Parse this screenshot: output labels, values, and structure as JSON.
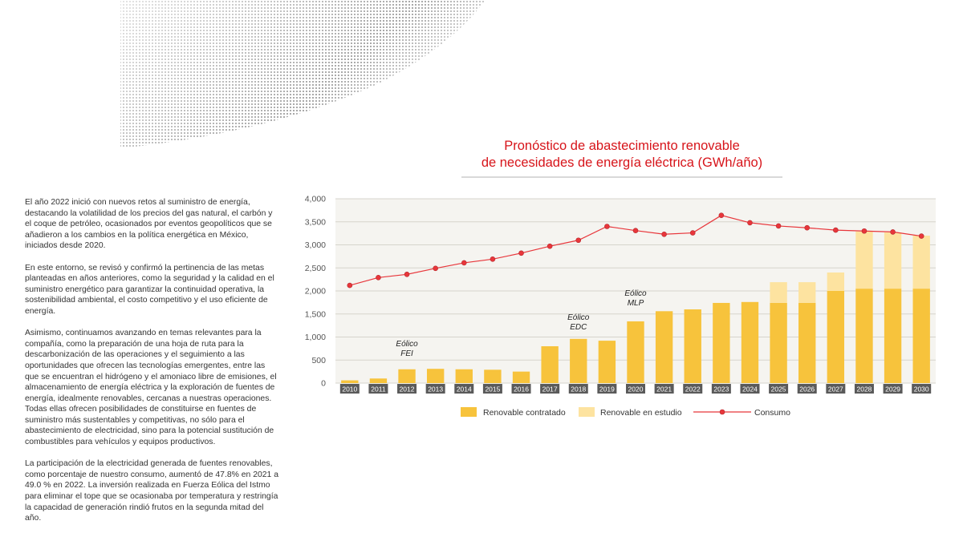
{
  "paragraphs": [
    "El año 2022 inició con nuevos retos al suministro de energía, destacando la volatilidad de los precios del gas natural, el carbón y el coque de petróleo, ocasionados por eventos geopolíticos que se añadieron a los cambios en la política energética en México, iniciados desde 2020.",
    "En este entorno, se revisó y confirmó la pertinencia de las metas planteadas en años anteriores, como la seguridad y la calidad en el suministro energético para garantizar la continuidad operativa, la sostenibilidad ambiental, el costo competitivo y el uso eficiente de energía.",
    "Asimismo, continuamos avanzando en temas relevantes para la compañía, como la preparación de una hoja de ruta para la descarbonización de las operaciones y el seguimiento a las oportunidades que ofrecen las tecnologías emergentes, entre las que se encuentran el hidrógeno y el amoniaco libre de emisiones, el almacenamiento de energía eléctrica y la exploración de fuentes de energía, idealmente renovables, cercanas a nuestras operaciones. Todas ellas ofrecen posibilidades de constituirse en fuentes de suministro más sustentables y competitivas, no sólo para el abastecimiento de electricidad, sino para la potencial sustitución de combustibles para vehículos y equipos productivos.",
    "La participación de la electricidad generada de fuentes renovables, como porcentaje de nuestro consumo, aumentó de 47.8% en 2021 a 49.0 % en 2022. La inversión realizada en Fuerza Eólica del Istmo para eliminar el tope que se ocasionaba por temperatura y restringía la capacidad de generación rindió frutos en la segunda mitad del año."
  ],
  "chart_data": {
    "type": "bar",
    "title_line1": "Pronóstico de abastecimiento renovable",
    "title_line2": "de necesidades de energía eléctrica (GWh/año)",
    "categories": [
      "2010",
      "2011",
      "2012",
      "2013",
      "2014",
      "2015",
      "2016",
      "2017",
      "2018",
      "2019",
      "2020",
      "2021",
      "2022",
      "2023",
      "2024",
      "2025",
      "2026",
      "2027",
      "2028",
      "2029",
      "2030"
    ],
    "ylim": [
      0,
      4000
    ],
    "yticks": [
      0,
      500,
      1000,
      1500,
      2000,
      2500,
      3000,
      3500,
      4000
    ],
    "ytick_labels": [
      "0",
      "500",
      "1,000",
      "1,500",
      "2,000",
      "2,500",
      "3,000",
      "3,500",
      "4,000"
    ],
    "grid": true,
    "legend_position": "bottom",
    "series": [
      {
        "name": "Renovable contratado",
        "type": "bar",
        "color": "#f7c33c",
        "values": [
          60,
          100,
          300,
          310,
          300,
          290,
          250,
          800,
          960,
          920,
          1340,
          1560,
          1600,
          1740,
          1760,
          1740,
          1740,
          2000,
          2050,
          2050,
          2050
        ]
      },
      {
        "name": "Renovable en estudio",
        "type": "bar",
        "color": "#fde3a0",
        "values": [
          0,
          0,
          0,
          0,
          0,
          0,
          0,
          0,
          0,
          0,
          0,
          0,
          0,
          0,
          0,
          450,
          450,
          400,
          1240,
          1220,
          1150
        ]
      },
      {
        "name": "Consumo",
        "type": "line",
        "color": "#e8363b",
        "values": [
          2120,
          2290,
          2360,
          2490,
          2610,
          2690,
          2820,
          2970,
          3100,
          3400,
          3310,
          3230,
          3260,
          3640,
          3480,
          3410,
          3370,
          3320,
          3300,
          3280,
          3190
        ]
      }
    ],
    "annotations": [
      {
        "category": "2012",
        "lines": [
          "Eólico",
          "FEI"
        ],
        "value": 800
      },
      {
        "category": "2018",
        "lines": [
          "Eólico",
          "EDC"
        ],
        "value": 1370
      },
      {
        "category": "2020",
        "lines": [
          "Eólico",
          "MLP"
        ],
        "value": 1900
      }
    ]
  },
  "colors": {
    "accent": "#d7141a",
    "plot_background": "#f5f4f0",
    "axis_label_box": "#5a5a5a"
  }
}
